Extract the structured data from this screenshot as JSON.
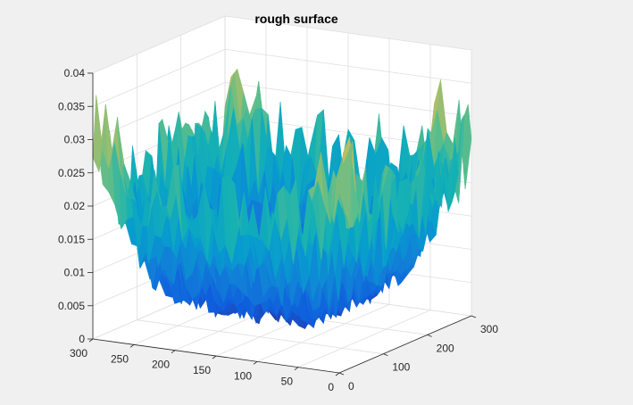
{
  "chart_data": {
    "type": "surface",
    "title": "rough surface",
    "xlabel": "",
    "ylabel": "",
    "zlabel": "",
    "xlim": [
      0,
      300
    ],
    "ylim": [
      0,
      300
    ],
    "zlim": [
      0,
      0.04
    ],
    "x_ticks": [
      "0",
      "100",
      "200",
      "300"
    ],
    "y_ticks": [
      "0",
      "50",
      "100",
      "150",
      "200",
      "250",
      "300"
    ],
    "z_ticks": [
      "0",
      "0.005",
      "0.01",
      "0.015",
      "0.02",
      "0.025",
      "0.03",
      "0.035",
      "0.04"
    ],
    "grid": true,
    "colormap": "parula",
    "z_range_approx": [
      0.001,
      0.037
    ],
    "description_of_shape": "bowl-shaped rough surface: low (~0.002) in the interior, rising to ~0.02-0.037 along the edges, with peaks near the corners",
    "colors": {
      "background": "#f0f0f0",
      "axes_face": "#ffffff",
      "grid": "#dedede",
      "axis": "#262626",
      "low": "#352a87",
      "mid": "#21b1c5",
      "high": "#f9fb0e"
    }
  }
}
